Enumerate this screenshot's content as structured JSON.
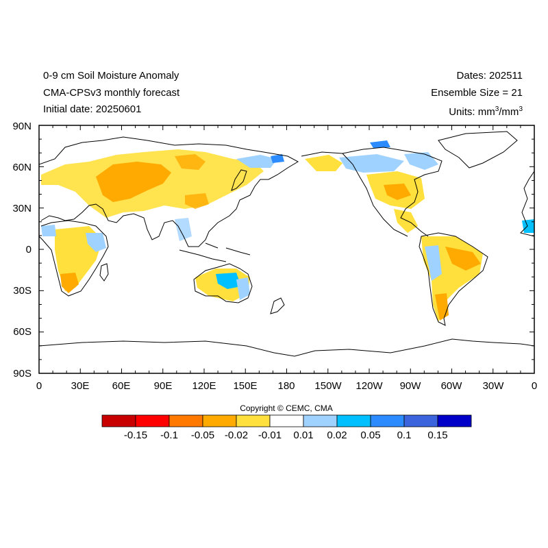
{
  "header": {
    "title_line1": "0-9 cm Soil Moisture Anomaly",
    "title_line2": "CMA-CPSv3 monthly forecast",
    "title_line3": "Initial date: 20250601",
    "dates": "Dates: 202511",
    "ensemble": "Ensemble Size = 21",
    "units_prefix": "Units: mm",
    "units_sup1": "3",
    "units_mid": "/mm",
    "units_sup2": "3"
  },
  "axes": {
    "y_labels": [
      "90N",
      "60N",
      "30N",
      "0",
      "30S",
      "60S",
      "90S"
    ],
    "x_labels": [
      "0",
      "30E",
      "60E",
      "90E",
      "120E",
      "150E",
      "180",
      "150W",
      "120W",
      "90W",
      "60W",
      "30W",
      "0"
    ]
  },
  "copyright": "Copyright © CEMC, CMA",
  "colorbar": {
    "colors": [
      "#c80000",
      "#ff0000",
      "#ff7800",
      "#ffaa00",
      "#ffe03c",
      "#ffffff",
      "#a0d2ff",
      "#00c0ff",
      "#2c8cff",
      "#3c64dc",
      "#0000c8"
    ],
    "labels": [
      "-0.15",
      "-0.1",
      "-0.05",
      "-0.02",
      "-0.01",
      "0.01",
      "0.02",
      "0.05",
      "0.1",
      "0.15"
    ]
  },
  "colors": {
    "dry_light": "#ffe03c",
    "dry_mid": "#ffaa00",
    "dry_strong": "#ff7800",
    "wet_light": "#a0d2ff",
    "wet_mid": "#00c0ff",
    "wet_strong": "#2c8cff",
    "coast": "#000000"
  }
}
